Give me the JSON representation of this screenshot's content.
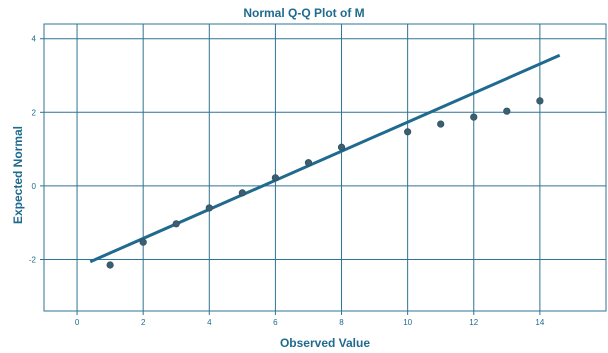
{
  "chart_data": {
    "type": "scatter",
    "title": "Normal Q-Q Plot of M",
    "xlabel": "Observed Value",
    "ylabel": "Expected Normal",
    "xlim": [
      -1,
      16
    ],
    "ylim": [
      -3.4,
      4.4
    ],
    "x_ticks": [
      0,
      2,
      4,
      6,
      8,
      10,
      12,
      14
    ],
    "y_ticks": [
      -2,
      0,
      2,
      4
    ],
    "x_tick_labels": [
      "0",
      "2",
      "4",
      "6",
      "8",
      "10",
      "12",
      "14"
    ],
    "y_tick_labels": [
      "-2",
      "0",
      "2",
      "4"
    ],
    "grid": true,
    "points": [
      {
        "x": 1,
        "y": -2.15
      },
      {
        "x": 2,
        "y": -1.53
      },
      {
        "x": 3,
        "y": -1.03
      },
      {
        "x": 4,
        "y": -0.6
      },
      {
        "x": 5,
        "y": -0.19
      },
      {
        "x": 6,
        "y": 0.22
      },
      {
        "x": 7,
        "y": 0.63
      },
      {
        "x": 8,
        "y": 1.05
      },
      {
        "x": 10,
        "y": 1.47
      },
      {
        "x": 11,
        "y": 1.68
      },
      {
        "x": 12,
        "y": 1.87
      },
      {
        "x": 13,
        "y": 2.03
      },
      {
        "x": 14,
        "y": 2.31
      }
    ],
    "reference_line": {
      "x": [
        0.4,
        14.6
      ],
      "y": [
        -2.06,
        3.55
      ]
    },
    "colors": {
      "line": "#1f6a8e",
      "point": "#3a5f73",
      "grid": "#2d7494",
      "text": "#1f6a8e"
    }
  }
}
